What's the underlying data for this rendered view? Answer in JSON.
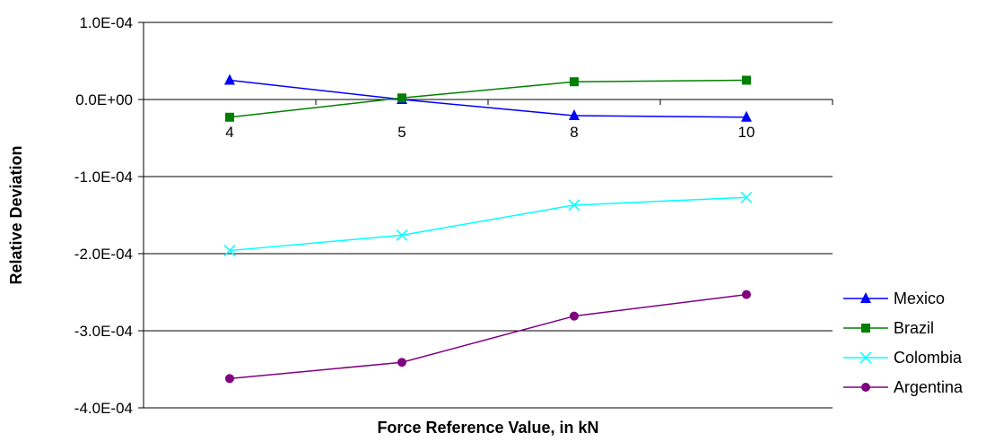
{
  "chart_data": {
    "type": "line",
    "title": "",
    "xlabel": "Force Reference Value, in kN",
    "ylabel": "Relative Deviation",
    "categories": [
      "4",
      "5",
      "8",
      "10"
    ],
    "yticks": [
      "1.0E-04",
      "0.0E+00",
      "-1.0E-04",
      "-2.0E-04",
      "-3.0E-04",
      "-4.0E-04"
    ],
    "ylim": [
      -0.0004,
      0.0001
    ],
    "grid": true,
    "legend_position": "right",
    "series": [
      {
        "name": "Mexico",
        "color": "#0000ff",
        "marker": "triangle",
        "values": [
          2.5e-05,
          0.0,
          -2.1e-05,
          -2.3e-05
        ]
      },
      {
        "name": "Brazil",
        "color": "#008000",
        "marker": "square",
        "values": [
          -2.3e-05,
          2e-06,
          2.3e-05,
          2.5e-05
        ]
      },
      {
        "name": "Colombia",
        "color": "#00ffff",
        "marker": "x",
        "values": [
          -0.000196,
          -0.000176,
          -0.000137,
          -0.000127
        ]
      },
      {
        "name": "Argentina",
        "color": "#800080",
        "marker": "circle",
        "values": [
          -0.000362,
          -0.000341,
          -0.000281,
          -0.000253
        ]
      }
    ]
  }
}
